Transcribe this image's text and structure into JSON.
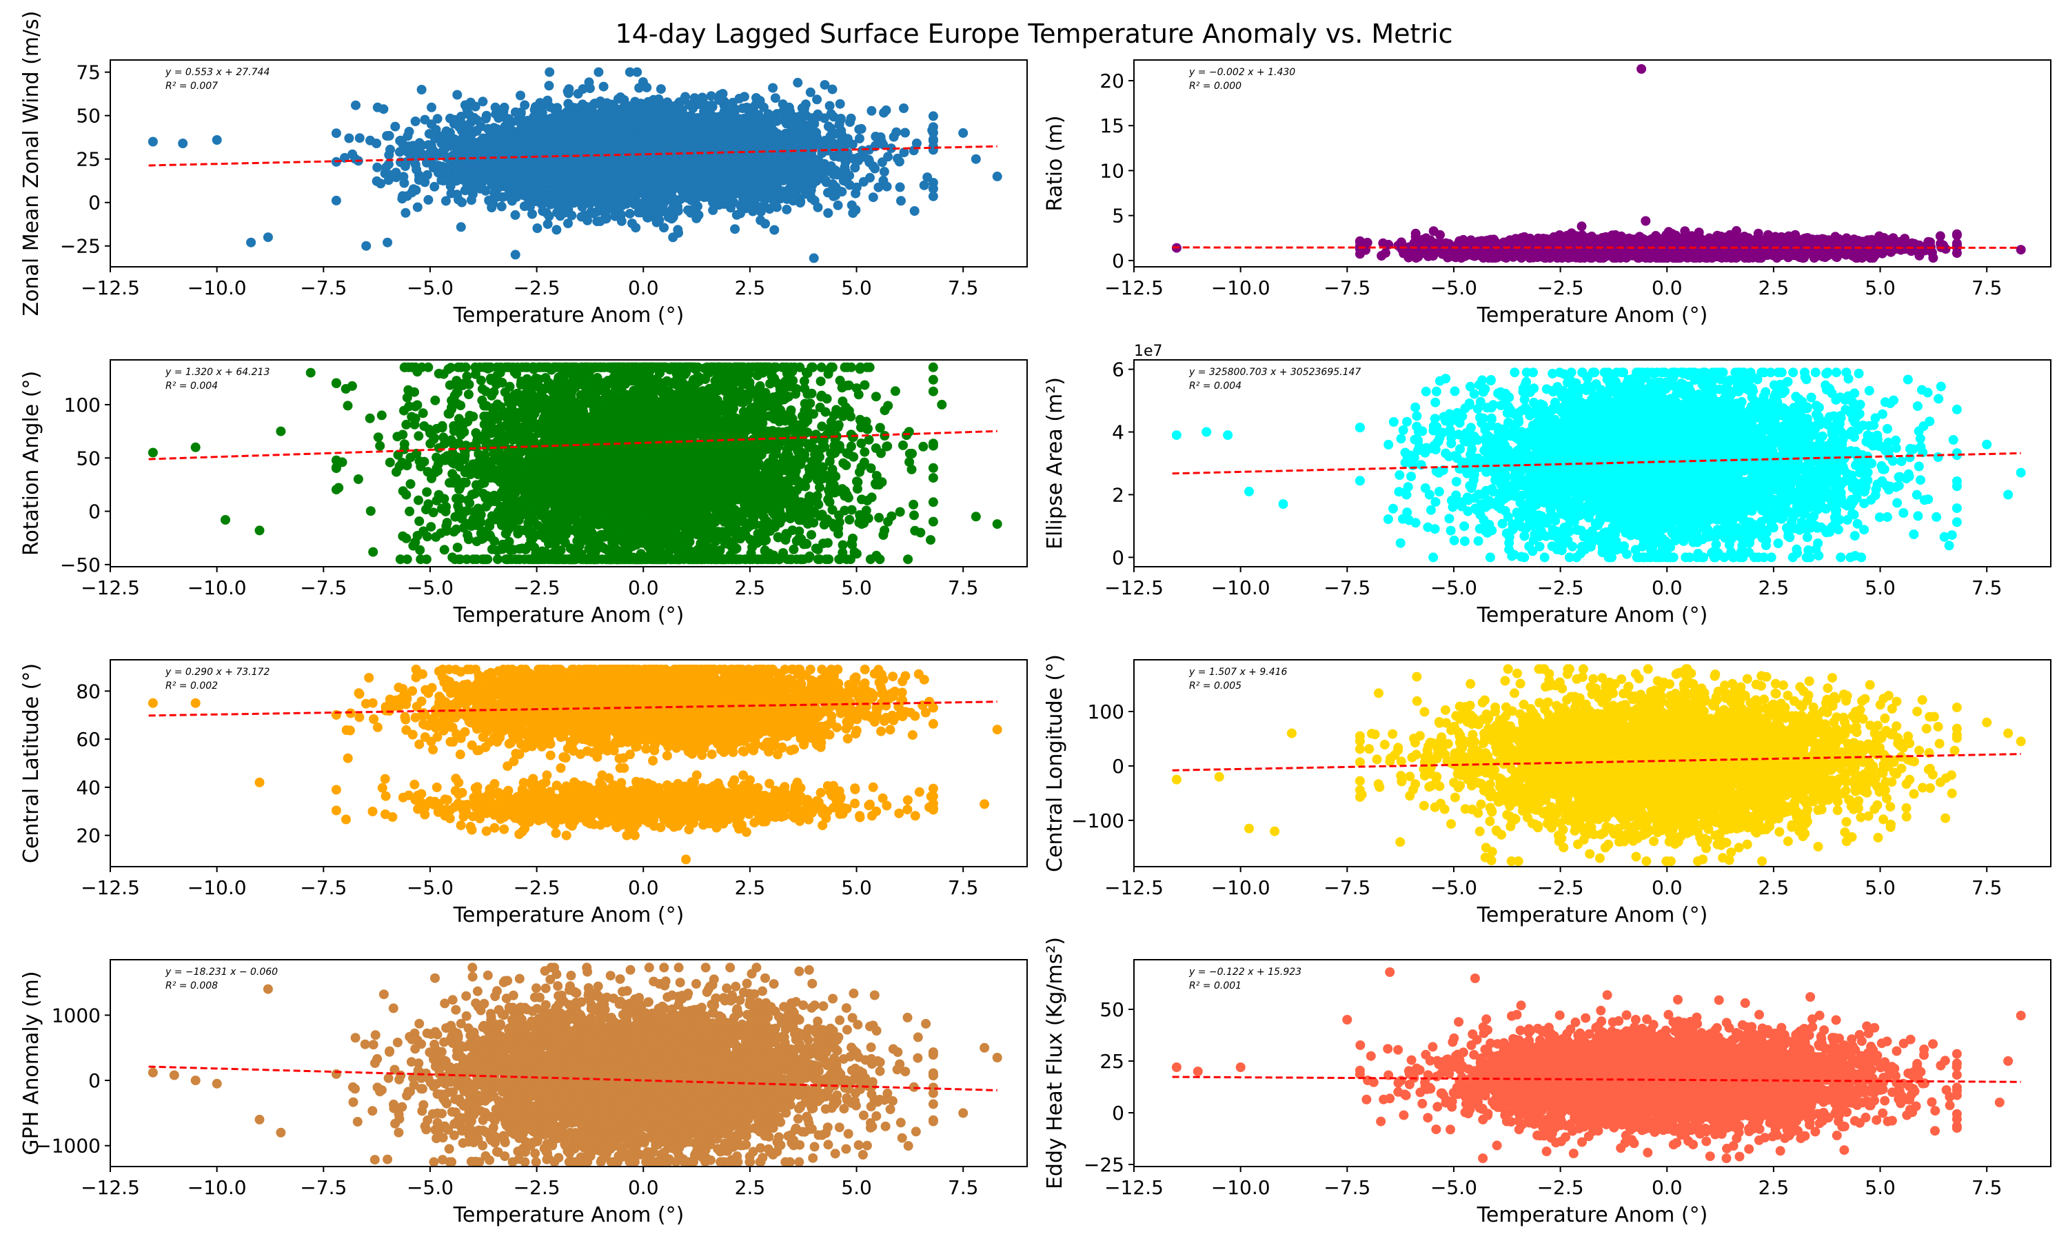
{
  "title": "14-day Lagged Surface Europe Temperature Anomaly vs. Metric",
  "chart_data": [
    {
      "type": "scatter",
      "ylabel": "Zonal Mean Zonal Wind (m/s)",
      "xlabel": "Temperature Anom (°)",
      "xlim": [
        -12.5,
        9.0
      ],
      "ylim": [
        -37,
        82
      ],
      "xticks": [
        -12.5,
        -10.0,
        -7.5,
        -5.0,
        -2.5,
        0.0,
        2.5,
        5.0,
        7.5
      ],
      "xtick_labels": [
        "−12.5",
        "−10.0",
        "−7.5",
        "−5.0",
        "−2.5",
        "0.0",
        "2.5",
        "5.0",
        "7.5"
      ],
      "yticks": [
        -25,
        0,
        25,
        50,
        75
      ],
      "ytick_labels": [
        "−25",
        "0",
        "25",
        "50",
        "75"
      ],
      "color": "#1f77b4",
      "fit": {
        "slope": 0.553,
        "intercept": 27.744
      },
      "equation": "y = 0.553 x + 27.744",
      "r2": "R² = 0.007",
      "fit_x": [
        -11.6,
        8.3
      ],
      "cloud": {
        "mean_x": 0.0,
        "sd_x": 2.3,
        "mean_y": 27,
        "sd_y": 14,
        "ymin": -30,
        "ymax": 75,
        "n": 5000
      },
      "outliers": [
        [
          -11.5,
          35
        ],
        [
          -10.8,
          34
        ],
        [
          -10.0,
          36
        ],
        [
          -9.2,
          -23
        ],
        [
          -8.8,
          -20
        ],
        [
          -6.5,
          -25
        ],
        [
          8.3,
          15
        ],
        [
          7.8,
          25
        ],
        [
          7.5,
          40
        ],
        [
          -6.0,
          -23
        ],
        [
          -3.0,
          -30
        ],
        [
          4.0,
          -32
        ]
      ]
    },
    {
      "type": "scatter",
      "ylabel": "Ratio (m)",
      "xlabel": "Temperature Anom (°)",
      "xlim": [
        -12.5,
        9.0
      ],
      "ylim": [
        -0.7,
        22.3
      ],
      "xticks": [
        -12.5,
        -10.0,
        -7.5,
        -5.0,
        -2.5,
        0.0,
        2.5,
        5.0,
        7.5
      ],
      "xtick_labels": [
        "−12.5",
        "−10.0",
        "−7.5",
        "−5.0",
        "−2.5",
        "0.0",
        "2.5",
        "5.0",
        "7.5"
      ],
      "yticks": [
        0,
        5,
        10,
        15,
        20
      ],
      "ytick_labels": [
        "0",
        "5",
        "10",
        "15",
        "20"
      ],
      "color": "#800080",
      "fit": {
        "slope": -0.002,
        "intercept": 1.43
      },
      "equation": "y = −0.002 x + 1.430",
      "r2": "R² = 0.000",
      "fit_x": [
        -11.6,
        8.3
      ],
      "cloud": {
        "mean_x": 0.0,
        "sd_x": 2.3,
        "mean_y": 1.4,
        "sd_y": 0.5,
        "ymin": 0.3,
        "ymax": 4.2,
        "n": 5000
      },
      "outliers": [
        [
          -0.6,
          21.3
        ],
        [
          -11.5,
          1.4
        ],
        [
          8.3,
          1.2
        ],
        [
          -0.5,
          4.4
        ],
        [
          -2.0,
          3.8
        ]
      ]
    },
    {
      "type": "scatter",
      "ylabel": "Rotation Angle (°)",
      "xlabel": "Temperature Anom (°)",
      "xlim": [
        -12.5,
        9.0
      ],
      "ylim": [
        -52,
        142
      ],
      "xticks": [
        -12.5,
        -10.0,
        -7.5,
        -5.0,
        -2.5,
        0.0,
        2.5,
        5.0,
        7.5
      ],
      "xtick_labels": [
        "−12.5",
        "−10.0",
        "−7.5",
        "−5.0",
        "−2.5",
        "0.0",
        "2.5",
        "5.0",
        "7.5"
      ],
      "yticks": [
        -50,
        0,
        50,
        100
      ],
      "ytick_labels": [
        "−50",
        "0",
        "50",
        "100"
      ],
      "color": "#008000",
      "fit": {
        "slope": 1.32,
        "intercept": 64.213
      },
      "equation": "y = 1.320 x + 64.213",
      "r2": "R² = 0.004",
      "fit_x": [
        -11.6,
        8.3
      ],
      "cloud": {
        "mean_x": 0.0,
        "sd_x": 2.3,
        "mean_y": 45,
        "sd_y": 55,
        "ymin": -45,
        "ymax": 135,
        "n": 5000
      },
      "outliers": [
        [
          -11.5,
          55
        ],
        [
          -10.5,
          60
        ],
        [
          -9.8,
          -8
        ],
        [
          -9.0,
          -18
        ],
        [
          -8.5,
          75
        ],
        [
          8.3,
          -12
        ],
        [
          7.8,
          -5
        ],
        [
          7.0,
          100
        ],
        [
          6.5,
          -20
        ],
        [
          -7.8,
          130
        ]
      ]
    },
    {
      "type": "scatter",
      "ylabel": "Ellipse Area (m²)",
      "xlabel": "Temperature Anom (°)",
      "offset_label": "1e7",
      "xlim": [
        -12.5,
        9.0
      ],
      "ylim": [
        -3000000,
        63000000
      ],
      "xticks": [
        -12.5,
        -10.0,
        -7.5,
        -5.0,
        -2.5,
        0.0,
        2.5,
        5.0,
        7.5
      ],
      "xtick_labels": [
        "−12.5",
        "−10.0",
        "−7.5",
        "−5.0",
        "−2.5",
        "0.0",
        "2.5",
        "5.0",
        "7.5"
      ],
      "yticks": [
        0,
        20000000,
        40000000,
        60000000
      ],
      "ytick_labels": [
        "0",
        "2",
        "4",
        "6"
      ],
      "color": "#00ffff",
      "fit": {
        "slope": 325800.703,
        "intercept": 30523695.147
      },
      "equation": "y = 325800.703 x + 30523695.147",
      "r2": "R² = 0.004",
      "fit_x": [
        -11.6,
        8.3
      ],
      "cloud": {
        "mean_x": 0.0,
        "sd_x": 2.3,
        "mean_y": 30000000,
        "sd_y": 13000000,
        "ymin": 0,
        "ymax": 59000000,
        "n": 5000
      },
      "outliers": [
        [
          -11.5,
          39000000
        ],
        [
          -10.8,
          40000000
        ],
        [
          -9.8,
          21000000
        ],
        [
          -9.0,
          17000000
        ],
        [
          8.3,
          27000000
        ],
        [
          8.0,
          20000000
        ],
        [
          7.5,
          36000000
        ],
        [
          -10.3,
          39000000
        ]
      ]
    },
    {
      "type": "scatter",
      "ylabel": "Central Latitude (°)",
      "xlabel": "Temperature Anom (°)",
      "xlim": [
        -12.5,
        9.0
      ],
      "ylim": [
        7,
        93
      ],
      "xticks": [
        -12.5,
        -10.0,
        -7.5,
        -5.0,
        -2.5,
        0.0,
        2.5,
        5.0,
        7.5
      ],
      "xtick_labels": [
        "−12.5",
        "−10.0",
        "−7.5",
        "−5.0",
        "−2.5",
        "0.0",
        "2.5",
        "5.0",
        "7.5"
      ],
      "yticks": [
        20,
        40,
        60,
        80
      ],
      "ytick_labels": [
        "20",
        "40",
        "60",
        "80"
      ],
      "color": "#ffa500",
      "fit": {
        "slope": 0.29,
        "intercept": 73.172
      },
      "equation": "y = 0.290 x + 73.172",
      "r2": "R² = 0.002",
      "fit_x": [
        -11.6,
        8.3
      ],
      "cloud": {
        "mean_x": 0.0,
        "sd_x": 2.3,
        "mean_y": 74,
        "sd_y": 8,
        "ymin": 48,
        "ymax": 89,
        "n": 4200
      },
      "cloud2": {
        "mean_x": 0.0,
        "sd_x": 2.3,
        "mean_y": 33,
        "sd_y": 4,
        "ymin": 20,
        "ymax": 45,
        "n": 1300
      },
      "outliers": [
        [
          -11.5,
          75
        ],
        [
          -10.5,
          75
        ],
        [
          8.3,
          64
        ],
        [
          8.0,
          33
        ],
        [
          -9.0,
          42
        ],
        [
          1.0,
          10
        ],
        [
          -0.2,
          20
        ]
      ]
    },
    {
      "type": "scatter",
      "ylabel": "Central Longitude (°)",
      "xlabel": "Temperature Anom (°)",
      "xlim": [
        -12.5,
        9.0
      ],
      "ylim": [
        -185,
        195
      ],
      "xticks": [
        -12.5,
        -10.0,
        -7.5,
        -5.0,
        -2.5,
        0.0,
        2.5,
        5.0,
        7.5
      ],
      "xtick_labels": [
        "−12.5",
        "−10.0",
        "−7.5",
        "−5.0",
        "−2.5",
        "0.0",
        "2.5",
        "5.0",
        "7.5"
      ],
      "yticks": [
        -100,
        0,
        100
      ],
      "ytick_labels": [
        "−100",
        "0",
        "100"
      ],
      "color": "#ffd700",
      "fit": {
        "slope": 1.507,
        "intercept": 9.416
      },
      "equation": "y = 1.507 x + 9.416",
      "r2": "R² = 0.005",
      "fit_x": [
        -11.6,
        8.3
      ],
      "cloud": {
        "mean_x": 0.0,
        "sd_x": 2.3,
        "mean_y": 5,
        "sd_y": 60,
        "ymin": -175,
        "ymax": 178,
        "n": 5000
      },
      "outliers": [
        [
          -11.5,
          -25
        ],
        [
          -10.5,
          -20
        ],
        [
          -9.8,
          -115
        ],
        [
          -9.2,
          -120
        ],
        [
          8.3,
          45
        ],
        [
          8.0,
          60
        ],
        [
          7.5,
          80
        ],
        [
          -8.8,
          60
        ]
      ]
    },
    {
      "type": "scatter",
      "ylabel": "GPH Anomaly (m)",
      "xlabel": "Temperature Anom (°)",
      "xlim": [
        -12.5,
        9.0
      ],
      "ylim": [
        -1320,
        1850
      ],
      "xticks": [
        -12.5,
        -10.0,
        -7.5,
        -5.0,
        -2.5,
        0.0,
        2.5,
        5.0,
        7.5
      ],
      "xtick_labels": [
        "−12.5",
        "−10.0",
        "−7.5",
        "−5.0",
        "−2.5",
        "0.0",
        "2.5",
        "5.0",
        "7.5"
      ],
      "yticks": [
        -1000,
        0,
        1000
      ],
      "ytick_labels": [
        "−1000",
        "0",
        "1000"
      ],
      "color": "#cd853f",
      "fit": {
        "slope": -18.231,
        "intercept": -0.06
      },
      "equation": "y = −18.231 x − 0.060",
      "r2": "R² = 0.008",
      "fit_x": [
        -11.6,
        8.3
      ],
      "cloud": {
        "mean_x": 0.0,
        "sd_x": 2.3,
        "mean_y": 50,
        "sd_y": 580,
        "ymin": -1250,
        "ymax": 1730,
        "n": 5000
      },
      "outliers": [
        [
          -11.5,
          120
        ],
        [
          -11.0,
          80
        ],
        [
          -10.5,
          0
        ],
        [
          -10.0,
          -50
        ],
        [
          -9.0,
          -600
        ],
        [
          -8.5,
          -800
        ],
        [
          8.3,
          350
        ],
        [
          8.0,
          500
        ],
        [
          7.5,
          -500
        ],
        [
          -8.8,
          1400
        ]
      ]
    },
    {
      "type": "scatter",
      "ylabel": "Eddy Heat Flux (Kg/ms²)",
      "xlabel": "Temperature Anom (°)",
      "xlim": [
        -12.5,
        9.0
      ],
      "ylim": [
        -26,
        74
      ],
      "xticks": [
        -12.5,
        -10.0,
        -7.5,
        -5.0,
        -2.5,
        0.0,
        2.5,
        5.0,
        7.5
      ],
      "xtick_labels": [
        "−12.5",
        "−10.0",
        "−7.5",
        "−5.0",
        "−2.5",
        "0.0",
        "2.5",
        "5.0",
        "7.5"
      ],
      "yticks": [
        -25,
        0,
        25,
        50
      ],
      "ytick_labels": [
        "−25",
        "0",
        "25",
        "50"
      ],
      "color": "#ff6347",
      "fit": {
        "slope": -0.122,
        "intercept": 15.923
      },
      "equation": "y = −0.122 x + 15.923",
      "r2": "R² = 0.001",
      "fit_x": [
        -11.6,
        8.3
      ],
      "cloud": {
        "mean_x": 0.0,
        "sd_x": 2.3,
        "mean_y": 16,
        "sd_y": 11,
        "ymin": -22,
        "ymax": 68,
        "n": 5000
      },
      "outliers": [
        [
          -11.5,
          22
        ],
        [
          -11.0,
          20
        ],
        [
          -10.0,
          22
        ],
        [
          8.3,
          47
        ],
        [
          8.0,
          25
        ],
        [
          7.8,
          5
        ],
        [
          -7.5,
          45
        ],
        [
          -6.5,
          68
        ],
        [
          -4.5,
          65
        ]
      ]
    }
  ]
}
